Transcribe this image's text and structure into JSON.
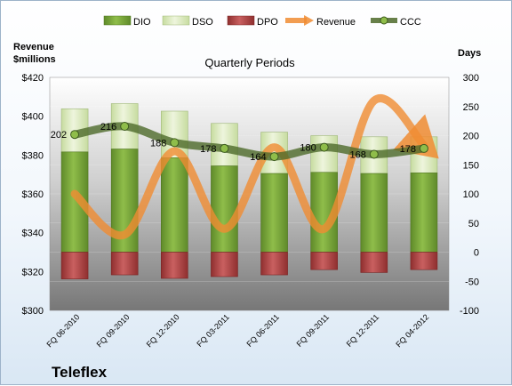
{
  "chart_data": {
    "type": "bar",
    "subtitle": "Quarterly Periods",
    "company": "Teleflex",
    "left_axis_title_lines": [
      "Revenue",
      "$millions"
    ],
    "right_axis_title": "Days",
    "categories": [
      "FQ 06-2010",
      "FQ 09-2010",
      "FQ 12-2010",
      "FQ 03-2011",
      "FQ 06-2011",
      "FQ 09-2011",
      "FQ 12-2011",
      "FQ 04-2012"
    ],
    "left_axis": {
      "min": 300,
      "max": 420,
      "step": 20,
      "tick_labels": [
        "$300",
        "$320",
        "$340",
        "$360",
        "$380",
        "$400",
        "$420"
      ]
    },
    "right_axis": {
      "min": -100,
      "max": 300,
      "step": 50,
      "tick_labels": [
        "-100",
        "-50",
        "0",
        "50",
        "100",
        "150",
        "200",
        "250",
        "300"
      ]
    },
    "series": [
      {
        "name": "DIO",
        "axis": "right",
        "kind": "bar",
        "color": "#77a33a",
        "values": [
          172,
          177,
          162,
          148,
          135,
          137,
          135,
          136
        ]
      },
      {
        "name": "DSO",
        "axis": "right",
        "kind": "bar-stacked",
        "color": "#d8e8b4",
        "values": [
          74,
          78,
          80,
          73,
          71,
          63,
          63,
          62
        ]
      },
      {
        "name": "DPO",
        "axis": "right",
        "kind": "bar-negative",
        "color": "#b84a4a",
        "values": [
          -46,
          -39,
          -45,
          -42,
          -39,
          -30,
          -35,
          -30
        ]
      },
      {
        "name": "Revenue",
        "axis": "left",
        "kind": "line",
        "color": "#f08c32",
        "values": [
          360,
          339,
          382,
          342,
          384,
          342,
          408,
          385
        ]
      },
      {
        "name": "CCC",
        "axis": "right",
        "kind": "line",
        "color": "#4e6a2a",
        "values": [
          202,
          216,
          188,
          178,
          164,
          180,
          168,
          178
        ]
      }
    ],
    "ccc_labels": [
      "202",
      "216",
      "188",
      "178",
      "164",
      "180",
      "168",
      "178"
    ],
    "legend": {
      "placement": "top",
      "items": [
        "DIO",
        "DSO",
        "DPO",
        "Revenue",
        "CCC"
      ]
    }
  }
}
